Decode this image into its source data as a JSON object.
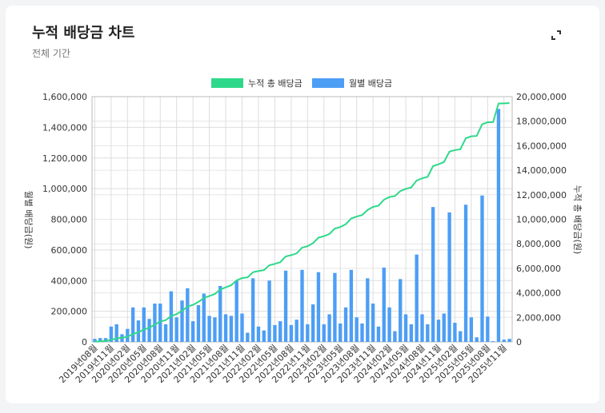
{
  "header": {
    "title": "누적 배당금 차트",
    "subtitle": "전체 기간",
    "expand_icon": "expand-icon"
  },
  "chart_data": {
    "type": "bar+line",
    "legend_position": "top",
    "grid": true,
    "left_ylabel": "월별 배당금(원)",
    "right_ylabel": "누적 총 배당금(원)",
    "left_ylim": [
      0,
      1600000
    ],
    "right_ylim": [
      0,
      20000000
    ],
    "left_ticks": [
      "0",
      "200,000",
      "400,000",
      "600,000",
      "800,000",
      "1,000,000",
      "1,200,000",
      "1,400,000",
      "1,600,000"
    ],
    "right_ticks": [
      "0",
      "2,000,000",
      "4,000,000",
      "6,000,000",
      "8,000,000",
      "10,000,000",
      "12,000,000",
      "14,000,000",
      "16,000,000",
      "18,000,000",
      "20,000,000"
    ],
    "start_month": "2019-08",
    "x_tick_labels": [
      "2019년08월",
      "2019년11월",
      "2020년02월",
      "2020년05월",
      "2020년08월",
      "2020년11월",
      "2021년02월",
      "2021년05월",
      "2021년08월",
      "2021년11월",
      "2022년02월",
      "2022년05월",
      "2022년08월",
      "2022년11월",
      "2023년02월",
      "2023년05월",
      "2023년08월",
      "2023년11월",
      "2024년02월",
      "2024년05월",
      "2024년08월",
      "2024년11월",
      "2025년02월",
      "2025년05월",
      "2025년08월",
      "2025년11월"
    ],
    "series": [
      {
        "name": "누적 총 배당금",
        "type": "line",
        "axis": "right",
        "color": "#2ed88a",
        "derived_from": "월별 배당금 (running sum)"
      },
      {
        "name": "월별 배당금",
        "type": "bar",
        "axis": "left",
        "color": "#4d9ef5",
        "values": [
          20000,
          25000,
          25000,
          100000,
          115000,
          50000,
          85000,
          225000,
          140000,
          225000,
          150000,
          250000,
          250000,
          115000,
          330000,
          160000,
          270000,
          350000,
          135000,
          240000,
          315000,
          170000,
          160000,
          365000,
          180000,
          170000,
          400000,
          185000,
          60000,
          415000,
          100000,
          75000,
          400000,
          110000,
          135000,
          465000,
          110000,
          145000,
          470000,
          115000,
          245000,
          455000,
          115000,
          180000,
          450000,
          120000,
          225000,
          470000,
          160000,
          120000,
          415000,
          250000,
          100000,
          485000,
          225000,
          70000,
          410000,
          180000,
          115000,
          570000,
          180000,
          115000,
          880000,
          145000,
          185000,
          845000,
          125000,
          70000,
          895000,
          160000,
          30000,
          955000,
          165000,
          5000,
          1520000,
          15000,
          20000
        ]
      }
    ]
  }
}
